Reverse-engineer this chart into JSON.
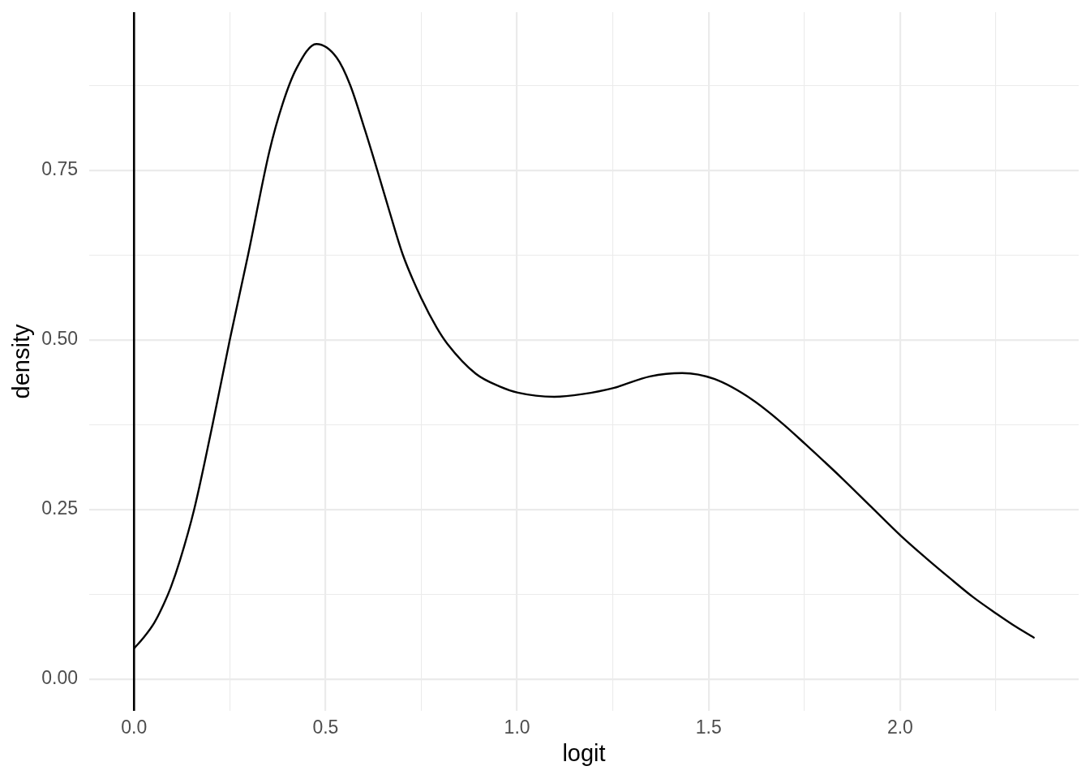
{
  "chart_data": {
    "type": "line",
    "xlabel": "logit",
    "ylabel": "density",
    "x": [
      0,
      0.025,
      0.053,
      0.078,
      0.096,
      0.12,
      0.157,
      0.205,
      0.25,
      0.298,
      0.353,
      0.388,
      0.424,
      0.476,
      0.529,
      0.564,
      0.603,
      0.635,
      0.667,
      0.702,
      0.751,
      0.79,
      0.818,
      0.892,
      0.955,
      1.002,
      1.097,
      1.171,
      1.252,
      1.347,
      1.431,
      1.516,
      1.616,
      1.692,
      1.751,
      1.848,
      1.924,
      2.002,
      2.066,
      2.129,
      2.192,
      2.252,
      2.302,
      2.349
    ],
    "series": [
      {
        "color": "#000000",
        "values": [
          0.045,
          0.061,
          0.083,
          0.111,
          0.135,
          0.175,
          0.25,
          0.375,
          0.5,
          0.626,
          0.777,
          0.848,
          0.9,
          0.936,
          0.916,
          0.876,
          0.809,
          0.75,
          0.689,
          0.625,
          0.56,
          0.518,
          0.494,
          0.45,
          0.431,
          0.422,
          0.416,
          0.42,
          0.429,
          0.446,
          0.451,
          0.442,
          0.411,
          0.377,
          0.347,
          0.296,
          0.254,
          0.211,
          0.179,
          0.149,
          0.12,
          0.096,
          0.077,
          0.061
        ]
      }
    ],
    "xlim": [
      -0.117,
      2.466
    ],
    "ylim": [
      -0.047,
      0.983
    ],
    "xticks": [
      {
        "value": 0,
        "label": "0.0"
      },
      {
        "value": 0.25,
        "label": null
      },
      {
        "value": 0.5,
        "label": "0.5"
      },
      {
        "value": 0.75,
        "label": null
      },
      {
        "value": 1,
        "label": "1.0"
      },
      {
        "value": 1.25,
        "label": null
      },
      {
        "value": 1.5,
        "label": "1.5"
      },
      {
        "value": 1.75,
        "label": null
      },
      {
        "value": 2,
        "label": "2.0"
      },
      {
        "value": 2.25,
        "label": null
      }
    ],
    "yticks": [
      {
        "value": 0,
        "label": "0.00"
      },
      {
        "value": 0.125,
        "label": null
      },
      {
        "value": 0.25,
        "label": "0.25"
      },
      {
        "value": 0.375,
        "label": null
      },
      {
        "value": 0.5,
        "label": "0.50"
      },
      {
        "value": 0.625,
        "label": null
      },
      {
        "value": 0.75,
        "label": "0.75"
      },
      {
        "value": 0.875,
        "label": null
      }
    ],
    "grid": true,
    "ref_lines": [
      {
        "axis": "x",
        "value": 0,
        "color": "#000000"
      }
    ]
  }
}
